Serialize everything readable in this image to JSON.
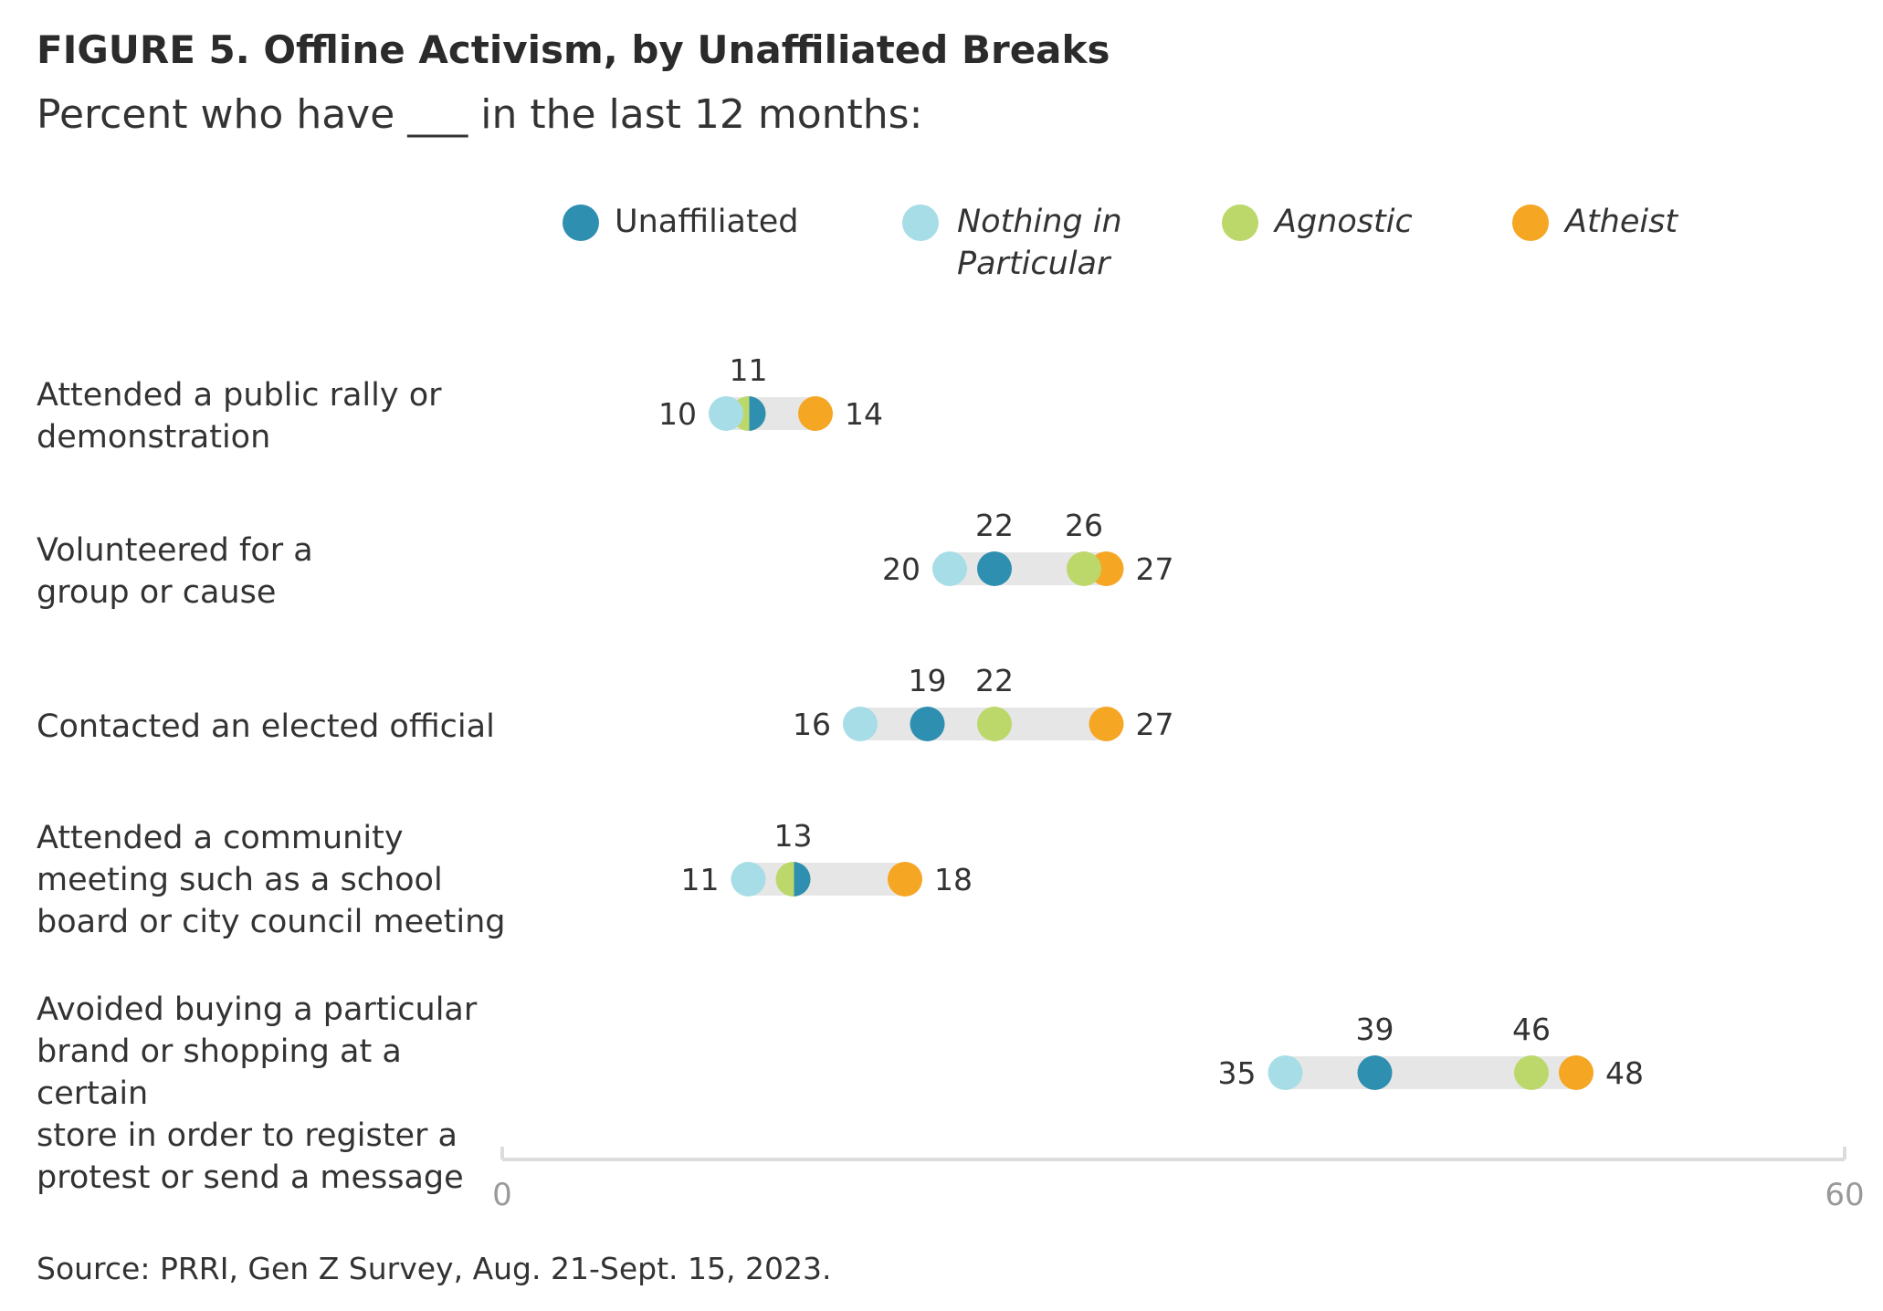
{
  "chart_data": {
    "type": "dot-range",
    "title": "FIGURE 5. Offline Activism, by Unaffiliated Breaks",
    "subtitle": "Percent who have ___ in the last 12 months:",
    "xlim": [
      0,
      60
    ],
    "x_ticks": [
      "0",
      "60"
    ],
    "legend": [
      {
        "name": "Unaffiliated",
        "color": "#2e8fb0",
        "italic": false
      },
      {
        "name": "Nothing in Particular",
        "line1": "Nothing in",
        "line2": "Particular",
        "color": "#a6dde6",
        "italic": true
      },
      {
        "name": "Agnostic",
        "color": "#bcd86a",
        "italic": true
      },
      {
        "name": "Atheist",
        "color": "#f5a623",
        "italic": true
      }
    ],
    "categories": [
      {
        "label": "Attended a public rally or demonstration",
        "lines": [
          "Attended a public rally or",
          "demonstration"
        ]
      },
      {
        "label": "Volunteered for a group or cause",
        "lines": [
          "Volunteered for a",
          "group or cause"
        ]
      },
      {
        "label": "Contacted an elected official",
        "lines": [
          "Contacted an elected official"
        ]
      },
      {
        "label": "Attended a community meeting such as a school board or city council meeting",
        "lines": [
          "Attended a community",
          "meeting such as a school",
          "board or city council meeting"
        ]
      },
      {
        "label": "Avoided buying a particular brand or shopping at a certain store in order to register a protest or send a message",
        "lines": [
          "Avoided buying a particular",
          "brand or shopping at a certain",
          "store in order to register a",
          "protest or send a message"
        ]
      }
    ],
    "series": [
      {
        "name": "Unaffiliated",
        "values": [
          11,
          22,
          19,
          13,
          39
        ]
      },
      {
        "name": "Nothing in Particular",
        "values": [
          10,
          20,
          16,
          11,
          35
        ]
      },
      {
        "name": "Agnostic",
        "values": [
          11,
          26,
          22,
          13,
          46
        ]
      },
      {
        "name": "Atheist",
        "values": [
          14,
          27,
          27,
          18,
          48
        ]
      }
    ],
    "value_labels": [
      {
        "top": [
          "11"
        ],
        "left": "10",
        "right": "14"
      },
      {
        "top": [
          "22",
          "26"
        ],
        "left": "20",
        "right": "27"
      },
      {
        "top": [
          "19",
          "22"
        ],
        "left": "16",
        "right": "27"
      },
      {
        "top": [
          "13"
        ],
        "left": "11",
        "right": "18"
      },
      {
        "top": [
          "39",
          "46"
        ],
        "left": "35",
        "right": "48"
      }
    ]
  },
  "source": "Source: PRRI, Gen Z Survey, Aug. 21-Sept. 15, 2023."
}
